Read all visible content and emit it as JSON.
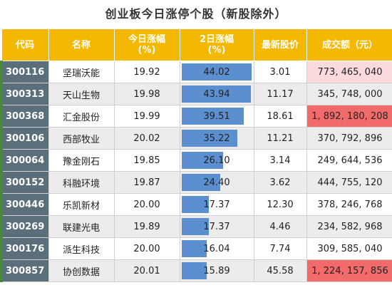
{
  "title": "创业板今日涨停个股（新股除外）",
  "headers": [
    "代码",
    "名称",
    "今日涨幅\n(%)",
    "2日涨幅\n(%)",
    "最新股价",
    "成交额（元）"
  ],
  "colors": {
    "header": "#f5b800",
    "bar": "#5b8fd0",
    "turnover_light": "#fadadd",
    "turnover_dark": "#f26b6b",
    "code_bg": "#5b6f7a"
  },
  "chart_data": {
    "type": "table",
    "columns": [
      "代码",
      "名称",
      "今日涨幅(%)",
      "2日涨幅(%)",
      "最新股价",
      "成交额（元）"
    ],
    "rows": [
      {
        "code": "300116",
        "name": "坚瑞沃能",
        "today_pct": "19.92",
        "two_day_pct": "44.02",
        "two_day_value": 44.02,
        "price": "3.01",
        "turnover": "773, 465, 040",
        "turnover_value": 773465040
      },
      {
        "code": "300313",
        "name": "天山生物",
        "today_pct": "19.98",
        "two_day_pct": "43.94",
        "two_day_value": 43.94,
        "price": "11.17",
        "turnover": "345, 748, 000",
        "turnover_value": 345748000
      },
      {
        "code": "300368",
        "name": "汇金股份",
        "today_pct": "19.99",
        "two_day_pct": "39.51",
        "two_day_value": 39.51,
        "price": "18.61",
        "turnover": "1, 892, 180, 208",
        "turnover_value": 1892180208
      },
      {
        "code": "300106",
        "name": "西部牧业",
        "today_pct": "20.02",
        "two_day_pct": "35.22",
        "two_day_value": 35.22,
        "price": "11.21",
        "turnover": "370, 792, 896",
        "turnover_value": 370792896
      },
      {
        "code": "300064",
        "name": "豫金刚石",
        "today_pct": "19.85",
        "two_day_pct": "26.10",
        "two_day_value": 26.1,
        "price": "3.14",
        "turnover": "249, 644, 536",
        "turnover_value": 249644536
      },
      {
        "code": "300152",
        "name": "科融环境",
        "today_pct": "19.87",
        "two_day_pct": "24.40",
        "two_day_value": 24.4,
        "price": "3.62",
        "turnover": "444, 755, 120",
        "turnover_value": 444755120
      },
      {
        "code": "300446",
        "name": "乐凯新材",
        "today_pct": "20.00",
        "two_day_pct": "17.37",
        "two_day_value": 17.37,
        "price": "12.30",
        "turnover": "378, 246, 768",
        "turnover_value": 378246768
      },
      {
        "code": "300269",
        "name": "联建光电",
        "today_pct": "19.89",
        "two_day_pct": "17.37",
        "two_day_value": 17.37,
        "price": "4.46",
        "turnover": "234, 582, 968",
        "turnover_value": 234582968
      },
      {
        "code": "300176",
        "name": "派生科技",
        "today_pct": "20.00",
        "two_day_pct": "16.04",
        "two_day_value": 16.04,
        "price": "7.74",
        "turnover": "309, 585, 040",
        "turnover_value": 309585040
      },
      {
        "code": "300857",
        "name": "协创数据",
        "today_pct": "20.01",
        "two_day_pct": "15.89",
        "two_day_value": 15.89,
        "price": "45.58",
        "turnover": "1, 224, 157, 856",
        "turnover_value": 1224157856
      }
    ]
  }
}
